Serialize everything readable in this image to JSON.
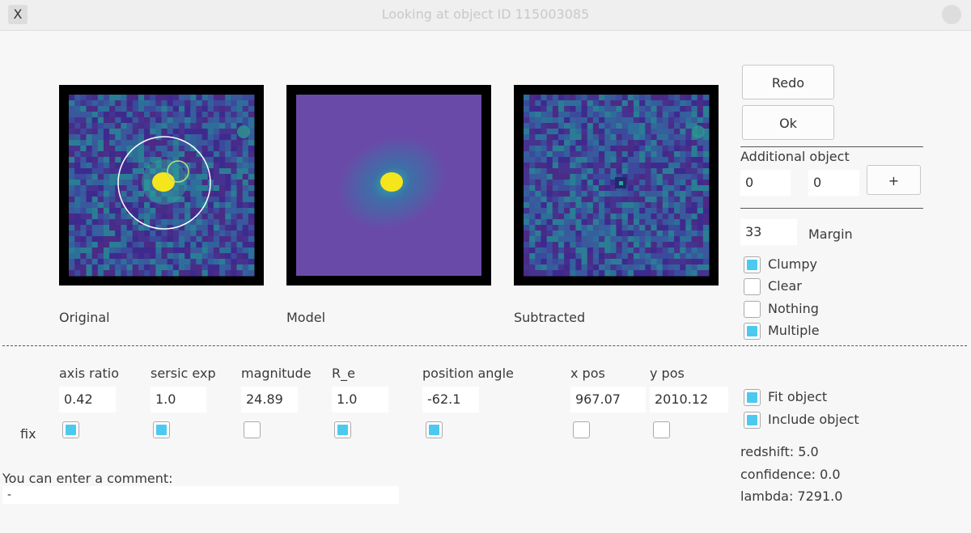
{
  "window": {
    "title": "Looking at object ID 115003085"
  },
  "images": [
    {
      "label": "Original"
    },
    {
      "label": "Model"
    },
    {
      "label": "Subtracted"
    }
  ],
  "buttons": {
    "redo": "Redo",
    "ok": "Ok",
    "add": "+"
  },
  "additional_object": {
    "label": "Additional object",
    "x": "0",
    "y": "0"
  },
  "margin": {
    "value": "33",
    "label": "Margin"
  },
  "flags": [
    {
      "label": "Clumpy",
      "checked": true
    },
    {
      "label": "Clear",
      "checked": false
    },
    {
      "label": "Nothing",
      "checked": false
    },
    {
      "label": "Multiple",
      "checked": true
    }
  ],
  "params": {
    "fix_label": "fix",
    "fields": [
      {
        "label": "axis ratio",
        "value": "0.42",
        "fixed": true
      },
      {
        "label": "sersic exp",
        "value": "1.0",
        "fixed": true
      },
      {
        "label": "magnitude",
        "value": "24.89",
        "fixed": false
      },
      {
        "label": "R_e",
        "value": "1.0",
        "fixed": true
      },
      {
        "label": "position angle",
        "value": "-62.1",
        "fixed": true
      },
      {
        "label": "x pos",
        "value": "967.07",
        "fixed": false
      },
      {
        "label": "y pos",
        "value": "2010.12",
        "fixed": false
      }
    ]
  },
  "fit": [
    {
      "label": "Fit object",
      "checked": true
    },
    {
      "label": "Include object",
      "checked": true
    }
  ],
  "comment": {
    "label": "You can enter a comment:",
    "value": "-"
  },
  "info": [
    "redshift: 5.0",
    "confidence: 0.0",
    "lambda: 7291.0"
  ]
}
